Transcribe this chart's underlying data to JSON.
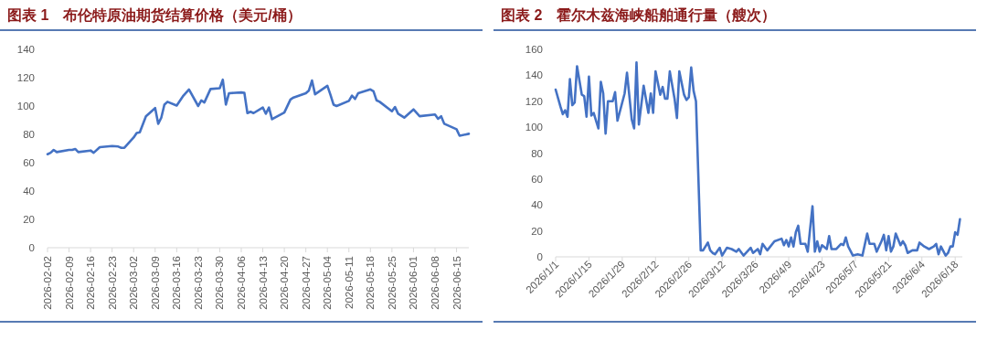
{
  "chart_data": [
    {
      "type": "line",
      "title": "图表 1　布伦特原油期货结算价格（美元/桶）",
      "x": [
        "2026-02-02",
        "2026-02-03",
        "2026-02-04",
        "2026-02-05",
        "2026-02-09",
        "2026-02-10",
        "2026-02-11",
        "2026-02-12",
        "2026-02-16",
        "2026-02-17",
        "2026-02-19",
        "2026-02-23",
        "2026-02-25",
        "2026-02-26",
        "2026-02-27",
        "2026-03-02",
        "2026-03-03",
        "2026-03-04",
        "2026-03-06",
        "2026-03-09",
        "2026-03-10",
        "2026-03-11",
        "2026-03-12",
        "2026-03-13",
        "2026-03-16",
        "2026-03-18",
        "2026-03-20",
        "2026-03-23",
        "2026-03-24",
        "2026-03-25",
        "2026-03-27",
        "2026-03-30",
        "2026-03-31",
        "2026-04-01",
        "2026-04-02",
        "2026-04-06",
        "2026-04-07",
        "2026-04-08",
        "2026-04-09",
        "2026-04-10",
        "2026-04-13",
        "2026-04-14",
        "2026-04-15",
        "2026-04-16",
        "2026-04-20",
        "2026-04-22",
        "2026-04-23",
        "2026-04-27",
        "2026-04-28",
        "2026-04-29",
        "2026-04-30",
        "2026-05-04",
        "2026-05-05",
        "2026-05-06",
        "2026-05-07",
        "2026-05-11",
        "2026-05-12",
        "2026-05-13",
        "2026-05-14",
        "2026-05-18",
        "2026-05-19",
        "2026-05-20",
        "2026-05-21",
        "2026-05-25",
        "2026-05-26",
        "2026-05-27",
        "2026-05-29",
        "2026-06-01",
        "2026-06-03",
        "2026-06-08",
        "2026-06-09",
        "2026-06-10",
        "2026-06-11",
        "2026-06-15",
        "2026-06-16",
        "2026-06-19"
      ],
      "series": [
        {
          "color": "#4472c4",
          "values": [
            66,
            67,
            69,
            67.5,
            69,
            69,
            69.7,
            67.5,
            68.6,
            67,
            71,
            71.8,
            71.4,
            70.5,
            70.5,
            77.8,
            81,
            81.5,
            92.8,
            98.6,
            87.5,
            91.8,
            101,
            103,
            100.3,
            106.8,
            111.7,
            100,
            104,
            102.5,
            112,
            112.6,
            118.6,
            101,
            109,
            109.6,
            109.4,
            95,
            96,
            95,
            99,
            94.5,
            99,
            90.7,
            95.4,
            104.6,
            106,
            109,
            111,
            118,
            108.3,
            114.3,
            108,
            101,
            100,
            103.6,
            107.4,
            105,
            109,
            111.7,
            110.4,
            104,
            103,
            96.3,
            99.3,
            94.6,
            91.8,
            97.6,
            92.8,
            94,
            91,
            92.8,
            87.5,
            83.6,
            79,
            80.4
          ]
        }
      ],
      "xlim": [
        "2026-02-02",
        "2026-06-19"
      ],
      "xticks": [
        {
          "value": "2026-02-02",
          "label": "2026-02-02"
        },
        {
          "value": "2026-02-09",
          "label": "2026-02-09"
        },
        {
          "value": "2026-02-16",
          "label": "2026-02-16"
        },
        {
          "value": "2026-02-23",
          "label": "2026-02-23"
        },
        {
          "value": "2026-03-02",
          "label": "2026-03-02"
        },
        {
          "value": "2026-03-09",
          "label": "2026-03-09"
        },
        {
          "value": "2026-03-16",
          "label": "2026-03-16"
        },
        {
          "value": "2026-03-23",
          "label": "2026-03-23"
        },
        {
          "value": "2026-03-30",
          "label": "2026-03-30"
        },
        {
          "value": "2026-04-06",
          "label": "2026-04-06"
        },
        {
          "value": "2026-04-13",
          "label": "2026-04-13"
        },
        {
          "value": "2026-04-20",
          "label": "2026-04-20"
        },
        {
          "value": "2026-04-27",
          "label": "2026-04-27"
        },
        {
          "value": "2026-05-04",
          "label": "2026-05-04"
        },
        {
          "value": "2026-05-11",
          "label": "2026-05-11"
        },
        {
          "value": "2026-05-18",
          "label": "2026-05-18"
        },
        {
          "value": "2026-05-25",
          "label": "2026-05-25"
        },
        {
          "value": "2026-06-01",
          "label": "2026-06-01"
        },
        {
          "value": "2026-06-08",
          "label": "2026-06-08"
        },
        {
          "value": "2026-06-15",
          "label": "2026-06-15"
        }
      ],
      "ylim": [
        0,
        140
      ],
      "yticks": [
        0,
        20,
        40,
        60,
        80,
        100,
        120,
        140
      ]
    },
    {
      "type": "line",
      "title": "图表 2　霍尔木兹海峡船舶通行量（艘次）",
      "x": [
        "2026-01-01",
        "2026-01-03",
        "2026-01-04",
        "2026-01-05",
        "2026-01-06",
        "2026-01-07",
        "2026-01-08",
        "2026-01-09",
        "2026-01-10",
        "2026-01-12",
        "2026-01-13",
        "2026-01-14",
        "2026-01-15",
        "2026-01-16",
        "2026-01-17",
        "2026-01-19",
        "2026-01-20",
        "2026-01-21",
        "2026-01-22",
        "2026-01-23",
        "2026-01-25",
        "2026-01-26",
        "2026-01-27",
        "2026-01-30",
        "2026-01-31",
        "2026-02-02",
        "2026-02-03",
        "2026-02-04",
        "2026-02-05",
        "2026-02-07",
        "2026-02-09",
        "2026-02-10",
        "2026-02-11",
        "2026-02-12",
        "2026-02-14",
        "2026-02-15",
        "2026-02-16",
        "2026-02-17",
        "2026-02-18",
        "2026-02-20",
        "2026-02-21",
        "2026-02-22",
        "2026-02-24",
        "2026-02-25",
        "2026-02-26",
        "2026-02-27",
        "2026-02-28",
        "2026-03-01",
        "2026-03-03",
        "2026-03-04",
        "2026-03-06",
        "2026-03-07",
        "2026-03-08",
        "2026-03-09",
        "2026-03-11",
        "2026-03-12",
        "2026-03-14",
        "2026-03-16",
        "2026-03-18",
        "2026-03-19",
        "2026-03-21",
        "2026-03-24",
        "2026-03-25",
        "2026-03-27",
        "2026-03-28",
        "2026-03-29",
        "2026-03-31",
        "2026-04-03",
        "2026-04-06",
        "2026-04-07",
        "2026-04-08",
        "2026-04-09",
        "2026-04-10",
        "2026-04-11",
        "2026-04-12",
        "2026-04-13",
        "2026-04-14",
        "2026-04-16",
        "2026-04-17",
        "2026-04-19",
        "2026-04-20",
        "2026-04-21",
        "2026-04-22",
        "2026-04-23",
        "2026-04-25",
        "2026-04-26",
        "2026-04-27",
        "2026-04-29",
        "2026-05-01",
        "2026-05-02",
        "2026-05-03",
        "2026-05-04",
        "2026-05-06",
        "2026-05-08",
        "2026-05-10",
        "2026-05-12",
        "2026-05-13",
        "2026-05-15",
        "2026-05-16",
        "2026-05-18",
        "2026-05-19",
        "2026-05-20",
        "2026-05-21",
        "2026-05-22",
        "2026-05-23",
        "2026-05-24",
        "2026-05-26",
        "2026-05-27",
        "2026-05-28",
        "2026-05-29",
        "2026-05-31",
        "2026-06-02",
        "2026-06-03",
        "2026-06-05",
        "2026-06-07",
        "2026-06-09",
        "2026-06-10",
        "2026-06-11",
        "2026-06-12",
        "2026-06-14",
        "2026-06-15",
        "2026-06-16",
        "2026-06-17",
        "2026-06-18",
        "2026-06-19",
        "2026-06-20"
      ],
      "series": [
        {
          "color": "#4472c4",
          "values": [
            129,
            116,
            110,
            113,
            108,
            137,
            117,
            119,
            147,
            125,
            124,
            108,
            139,
            109,
            111,
            99,
            135,
            126,
            95,
            120,
            120,
            127,
            105,
            126,
            142,
            106,
            99,
            150,
            102,
            132,
            111,
            126,
            111,
            143,
            125,
            131,
            122,
            122,
            143,
            122,
            107,
            143,
            125,
            121,
            123,
            146,
            128,
            120,
            5,
            5,
            11,
            5,
            3,
            2,
            7,
            1,
            7,
            6,
            4,
            6,
            1,
            7,
            3,
            6,
            2,
            10,
            5,
            12,
            14,
            9,
            13,
            8,
            15,
            8,
            19,
            24,
            10,
            10,
            4,
            39,
            4,
            12,
            4,
            9,
            6,
            16,
            6,
            6,
            10,
            9,
            15,
            8,
            1,
            2,
            1,
            18,
            10,
            10,
            4,
            12,
            17,
            5,
            16,
            4,
            8,
            18,
            9,
            12,
            9,
            3,
            5,
            5,
            11,
            8,
            6,
            8,
            10,
            2,
            8,
            1,
            3,
            8,
            8,
            19,
            17,
            29
          ]
        }
      ],
      "xlim": [
        "2026-01-01",
        "2026-06-21"
      ],
      "xticks": [
        {
          "value": "2026-01-01",
          "label": "2026/1/1"
        },
        {
          "value": "2026-01-15",
          "label": "2026/1/15"
        },
        {
          "value": "2026-01-29",
          "label": "2026/1/29"
        },
        {
          "value": "2026-02-12",
          "label": "2026/2/12"
        },
        {
          "value": "2026-02-26",
          "label": "2026/2/26"
        },
        {
          "value": "2026-03-12",
          "label": "2026/3/12"
        },
        {
          "value": "2026-03-26",
          "label": "2026/3/26"
        },
        {
          "value": "2026-04-09",
          "label": "2026/4/9"
        },
        {
          "value": "2026-04-23",
          "label": "2026/4/23"
        },
        {
          "value": "2026-05-07",
          "label": "2026/5/7"
        },
        {
          "value": "2026-05-21",
          "label": "2026/5/21"
        },
        {
          "value": "2026-06-04",
          "label": "2026/6/4"
        },
        {
          "value": "2026-06-18",
          "label": "2026/6/18"
        }
      ],
      "ylim": [
        0,
        160
      ],
      "yticks": [
        0,
        20,
        40,
        60,
        80,
        100,
        120,
        140,
        160
      ]
    }
  ]
}
